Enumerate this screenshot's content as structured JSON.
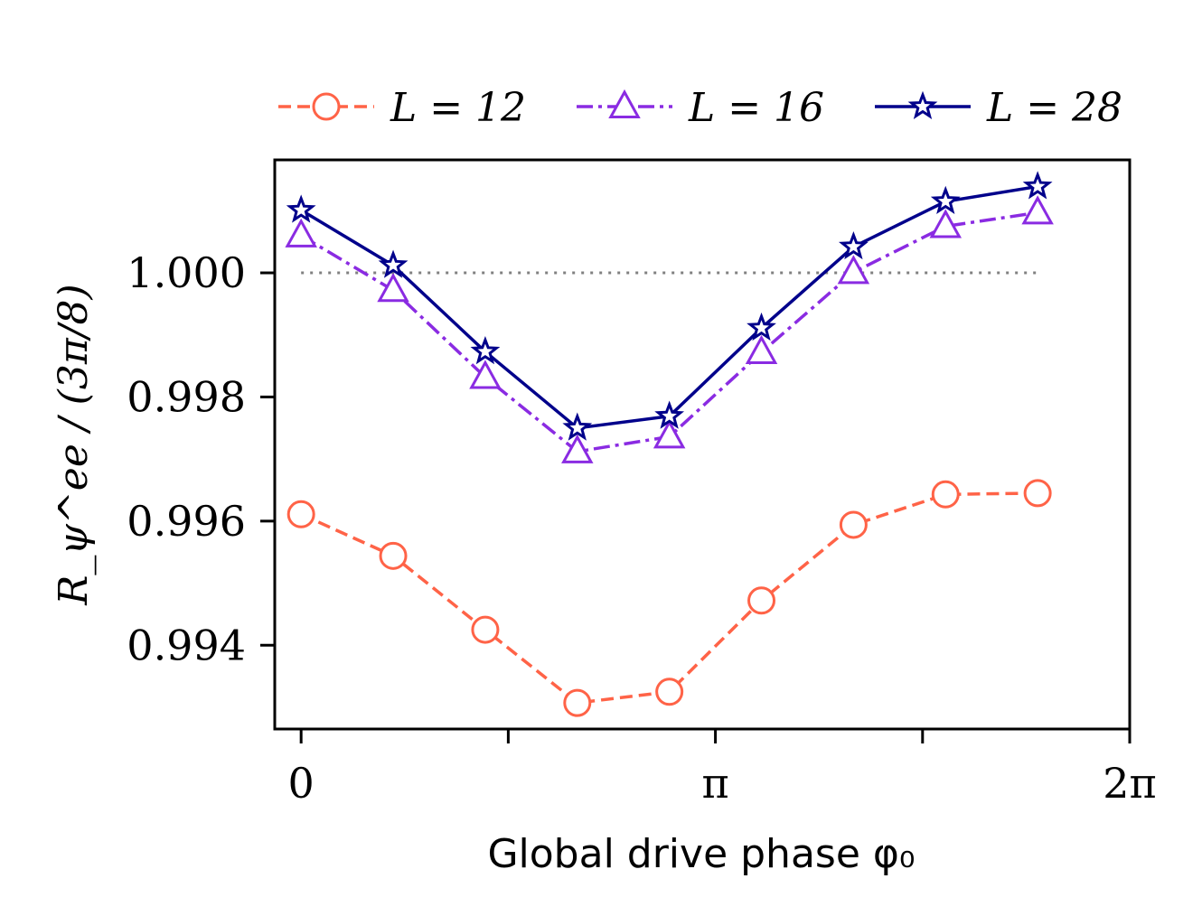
{
  "chart_data": {
    "type": "line",
    "title": "",
    "xlabel": "Global drive phase φ₀",
    "ylabel": "R_ψ^ee / (3π/8)",
    "xlim": [
      -0.2,
      6.2832
    ],
    "ylim": [
      0.99265,
      1.00182
    ],
    "x_ticks": [
      {
        "value": 0,
        "label": "0"
      },
      {
        "value": 1.5708,
        "label": ""
      },
      {
        "value": 3.1416,
        "label": "π"
      },
      {
        "value": 4.7124,
        "label": ""
      },
      {
        "value": 6.2832,
        "label": "2π"
      }
    ],
    "y_ticks": [
      {
        "value": 0.994,
        "label": "0.994"
      },
      {
        "value": 0.996,
        "label": "0.996"
      },
      {
        "value": 0.998,
        "label": "0.998"
      },
      {
        "value": 1.0,
        "label": "1.000"
      }
    ],
    "reference_line": {
      "y": 1.0,
      "x_from": 0,
      "x_to": 5.585,
      "style": "dotted",
      "color": "#808080"
    },
    "legend_position": "top",
    "x": [
      0,
      0.6981,
      1.3963,
      2.0944,
      2.7925,
      3.4907,
      4.1888,
      4.8869,
      5.5851
    ],
    "series": [
      {
        "name": "L = 12",
        "color": "#ff6347",
        "linestyle": "dashed",
        "marker": "circle",
        "values": [
          0.99611,
          0.99544,
          0.99425,
          0.99307,
          0.99325,
          0.99472,
          0.99594,
          0.99643,
          0.99645
        ]
      },
      {
        "name": "L = 16",
        "color": "#8a2be2",
        "linestyle": "dashdot",
        "marker": "triangle",
        "values": [
          1.0006,
          0.99972,
          0.99832,
          0.99712,
          0.99736,
          0.99872,
          1.00001,
          1.00075,
          1.00097
        ]
      },
      {
        "name": "L = 28",
        "color": "#00008b",
        "linestyle": "solid",
        "marker": "star",
        "values": [
          1.00101,
          1.00012,
          0.99873,
          0.9975,
          0.99769,
          0.99911,
          1.00042,
          1.00115,
          1.00139
        ]
      }
    ]
  }
}
